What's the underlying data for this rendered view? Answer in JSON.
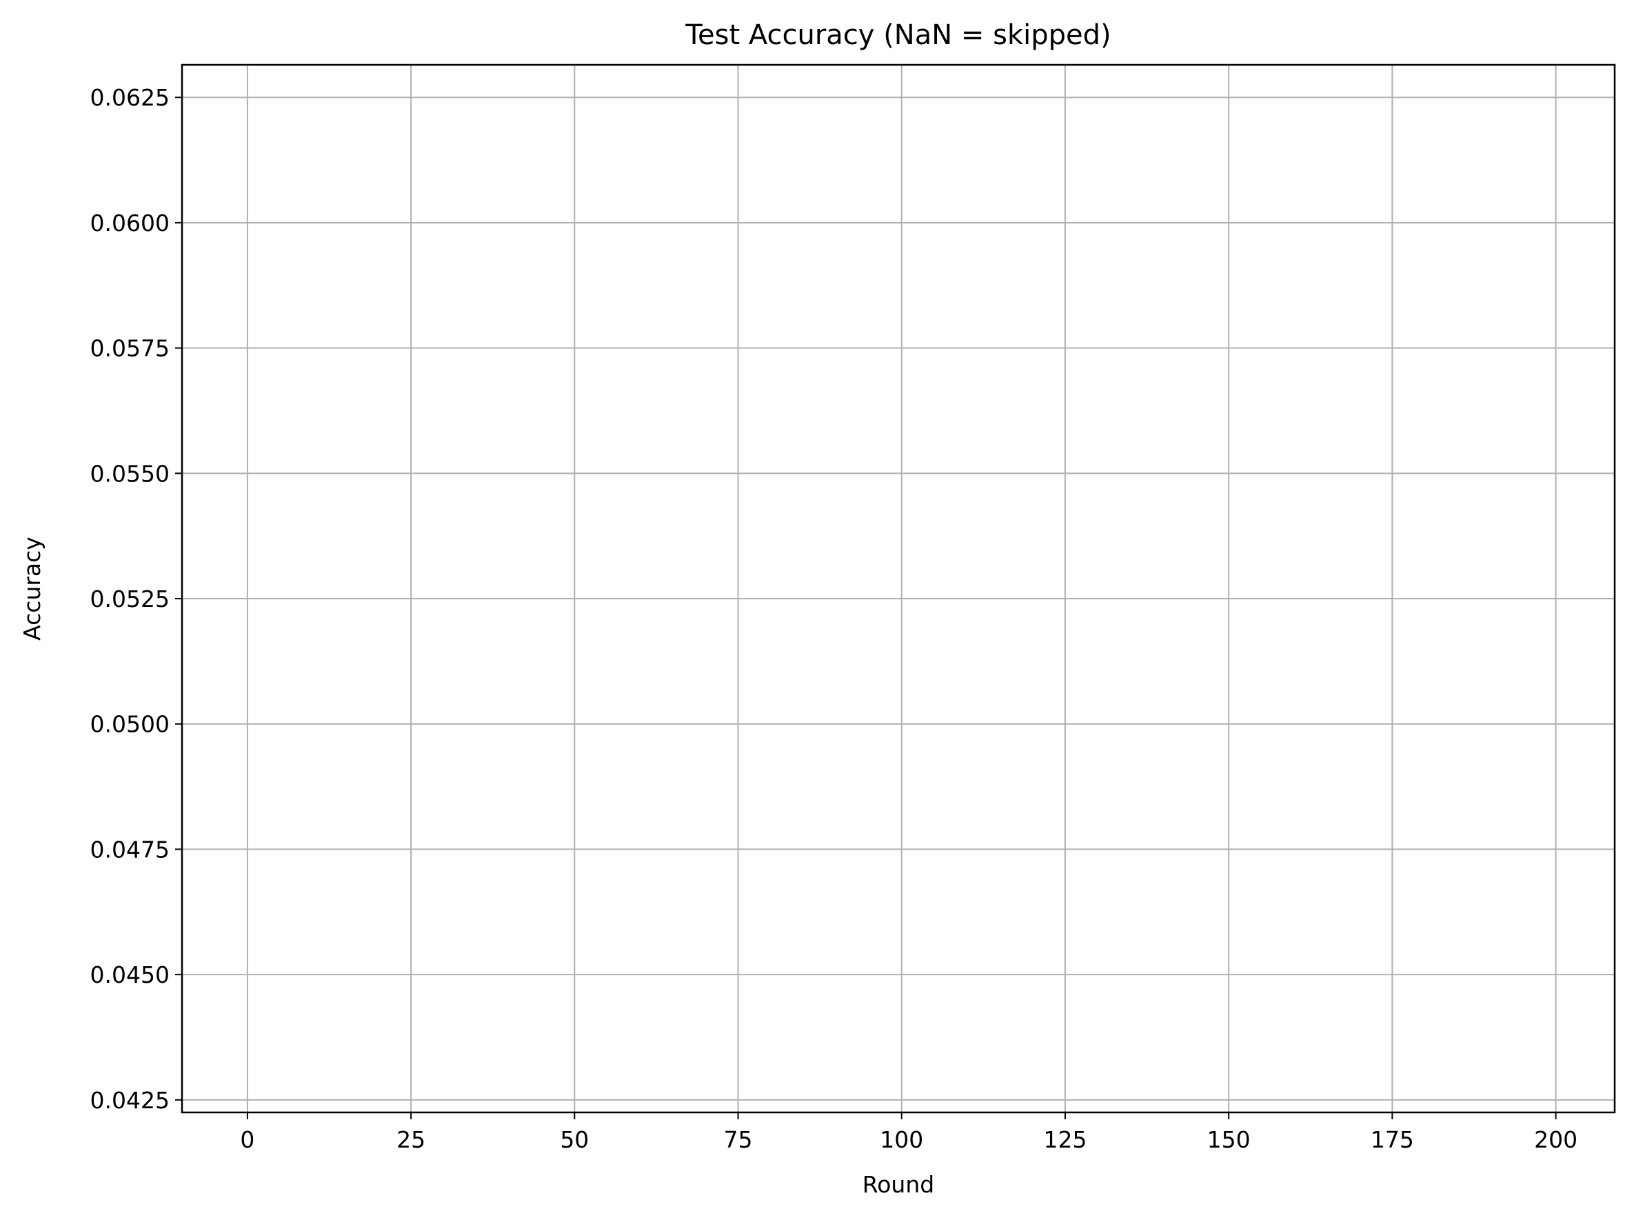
{
  "chart_data": {
    "type": "line",
    "title": "Test Accuracy (NaN = skipped)",
    "xlabel": "Round",
    "ylabel": "Accuracy",
    "x_ticks": [
      0,
      25,
      50,
      75,
      100,
      125,
      150,
      175,
      200
    ],
    "y_ticks": [
      0.0425,
      0.045,
      0.0475,
      0.05,
      0.0525,
      0.055,
      0.0575,
      0.06,
      0.0625
    ],
    "y_tick_labels": [
      "0.0425",
      "0.0450",
      "0.0475",
      "0.0500",
      "0.0525",
      "0.0550",
      "0.0575",
      "0.0600",
      "0.0625"
    ],
    "xlim": [
      -10,
      209
    ],
    "ylim": [
      0.04225,
      0.06315
    ],
    "grid": true,
    "series": [],
    "colors": {
      "grid": "#b0b0b0",
      "axes": "#000000",
      "background": "#ffffff"
    }
  }
}
